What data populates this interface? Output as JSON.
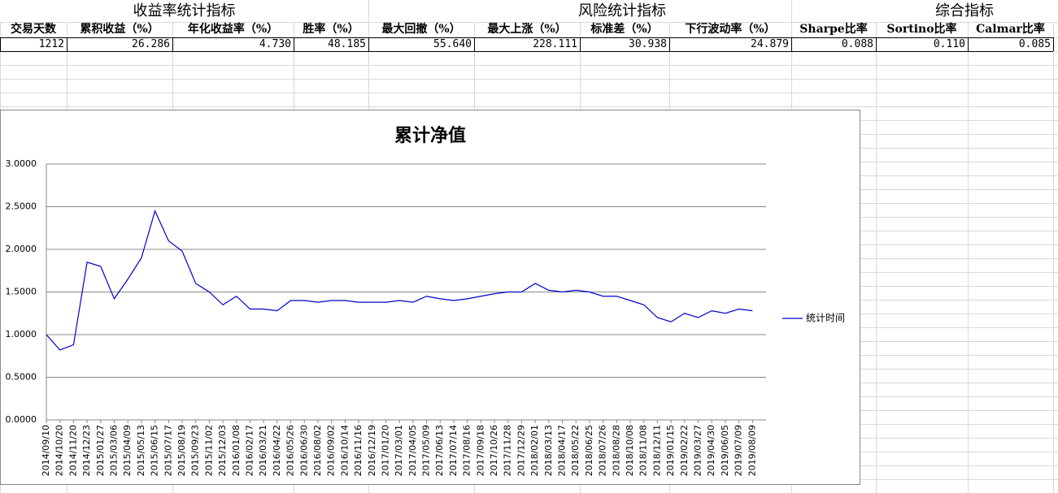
{
  "table": {
    "groups": [
      "收益率统计指标",
      "风险统计指标",
      "综合指标"
    ],
    "headers": [
      "交易天数",
      "累积收益（%）",
      "年化收益率（%）",
      "胜率（%）",
      "最大回撤（%）",
      "最大上涨（%）",
      "标准差（%）",
      "下行波动率（%）",
      "Sharpe比率",
      "Sortino比率",
      "Calmar比率"
    ],
    "rows": [
      [
        "1212",
        "26.286",
        "4.730",
        "48.185",
        "55.640",
        "228.111",
        "30.938",
        "24.879",
        "0.088",
        "0.110",
        "0.085"
      ]
    ]
  },
  "chart_data": {
    "type": "line",
    "title": "累计净值",
    "categories": [
      "2014/09/10",
      "2014/10/20",
      "2014/11/20",
      "2014/12/23",
      "2015/01/27",
      "2015/03/06",
      "2015/04/09",
      "2015/05/13",
      "2015/06/15",
      "2015/07/17",
      "2015/08/19",
      "2015/09/23",
      "2015/11/02",
      "2015/12/03",
      "2016/01/08",
      "2016/02/17",
      "2016/03/21",
      "2016/04/22",
      "2016/05/26",
      "2016/06/30",
      "2016/08/02",
      "2016/09/02",
      "2016/10/14",
      "2016/11/16",
      "2016/12/19",
      "2017/01/20",
      "2017/03/01",
      "2017/04/05",
      "2017/05/09",
      "2017/06/13",
      "2017/07/14",
      "2017/08/16",
      "2017/09/18",
      "2017/10/26",
      "2017/11/28",
      "2017/12/29",
      "2018/02/01",
      "2018/03/13",
      "2018/04/17",
      "2018/05/22",
      "2018/06/25",
      "2018/07/26",
      "2018/08/28",
      "2018/10/08",
      "2018/11/08",
      "2018/12/11",
      "2019/01/15",
      "2019/02/22",
      "2019/03/27",
      "2019/04/30",
      "2019/06/05",
      "2019/07/09",
      "2019/08/09"
    ],
    "series": [
      {
        "name": "统计时间",
        "color": "#0000cc",
        "values": [
          1.0,
          0.82,
          0.88,
          1.85,
          1.8,
          1.42,
          1.65,
          1.9,
          2.45,
          2.1,
          1.98,
          1.6,
          1.5,
          1.35,
          1.45,
          1.3,
          1.3,
          1.28,
          1.4,
          1.4,
          1.38,
          1.4,
          1.4,
          1.38,
          1.38,
          1.38,
          1.4,
          1.38,
          1.45,
          1.42,
          1.4,
          1.42,
          1.45,
          1.48,
          1.5,
          1.5,
          1.6,
          1.52,
          1.5,
          1.52,
          1.5,
          1.45,
          1.45,
          1.4,
          1.35,
          1.2,
          1.15,
          1.25,
          1.2,
          1.28,
          1.25,
          1.3,
          1.28
        ]
      }
    ],
    "ylim": [
      0,
      3
    ],
    "yticks": [
      {
        "value": 0,
        "label": "0.0000"
      },
      {
        "value": 0.5,
        "label": "0.5000"
      },
      {
        "value": 1,
        "label": "1.0000"
      },
      {
        "value": 1.5,
        "label": "1.5000"
      },
      {
        "value": 2,
        "label": "2.0000"
      },
      {
        "value": 2.5,
        "label": "2.5000"
      },
      {
        "value": 3,
        "label": "3.0000"
      }
    ],
    "grid": true,
    "legend": "right"
  }
}
